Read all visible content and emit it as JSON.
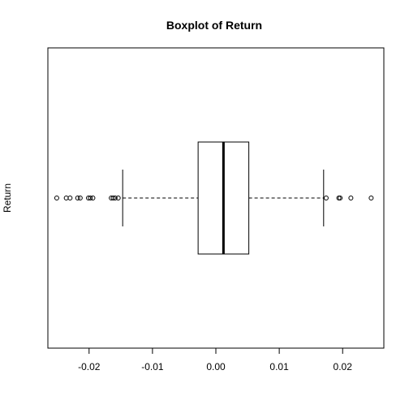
{
  "chart_data": {
    "type": "boxplot",
    "orientation": "horizontal",
    "title": "Boxplot of Return",
    "ylabel": "Return",
    "xlabel": "",
    "xlim": [
      -0.0265,
      0.0265
    ],
    "ticks": [
      {
        "value": -0.02,
        "label": "-0.02"
      },
      {
        "value": -0.01,
        "label": "-0.01"
      },
      {
        "value": 0.0,
        "label": "0.00"
      },
      {
        "value": 0.01,
        "label": "0.01"
      },
      {
        "value": 0.02,
        "label": "0.02"
      }
    ],
    "box": {
      "whisker_low": -0.0147,
      "q1": -0.0028,
      "median": 0.0012,
      "q3": 0.0052,
      "whisker_high": 0.017
    },
    "outliers": [
      -0.0251,
      -0.0236,
      -0.023,
      -0.0218,
      -0.0214,
      -0.0201,
      -0.0198,
      -0.0194,
      -0.0165,
      -0.0162,
      -0.0159,
      -0.0154,
      0.0174,
      0.0194,
      0.0196,
      0.0213,
      0.0245
    ],
    "grid": false
  }
}
